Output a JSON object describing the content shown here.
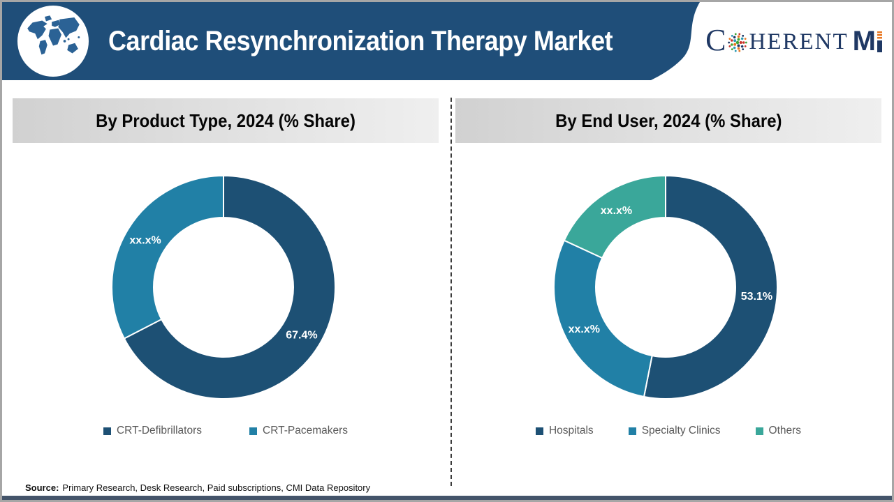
{
  "header": {
    "title": "Cardiac Resynchronization Therapy Market",
    "brand": {
      "c": "C",
      "herent": "HERENT",
      "m": "M"
    }
  },
  "theme": {
    "header_bg": "#1F4E79",
    "navy": "#1D5074",
    "blue": "#2180A6",
    "teal": "#3AA79A",
    "legend_text": "#595959",
    "brand_navy": "#1F3864",
    "brand_orange": "#E87722",
    "bottom_strip": "#44546A"
  },
  "chart_data": [
    {
      "type": "pie",
      "subtype": "donut",
      "title": "By Product Type, 2024 (% Share)",
      "categories": [
        "CRT-Defibrillators",
        "CRT-Pacemakers"
      ],
      "values": [
        67.4,
        32.6
      ],
      "slice_labels": [
        "67.4%",
        "xx.x%"
      ],
      "colors": [
        "#1D5074",
        "#2180A6"
      ],
      "start_angle_deg": 0,
      "direction": "clockwise",
      "legend_position": "bottom"
    },
    {
      "type": "pie",
      "subtype": "donut",
      "title": "By End User, 2024 (% Share)",
      "categories": [
        "Hospitals",
        "Specialty Clinics",
        "Others"
      ],
      "values": [
        53.1,
        28.8,
        18.1
      ],
      "slice_labels": [
        "53.1%",
        "xx.x%",
        "xx.x%"
      ],
      "colors": [
        "#1D5074",
        "#2180A6",
        "#3AA79A"
      ],
      "start_angle_deg": 0,
      "direction": "clockwise",
      "legend_position": "bottom"
    }
  ],
  "footer": {
    "source_label": "Source:",
    "source_text": "Primary Research, Desk Research, Paid subscriptions, CMI Data Repository"
  }
}
